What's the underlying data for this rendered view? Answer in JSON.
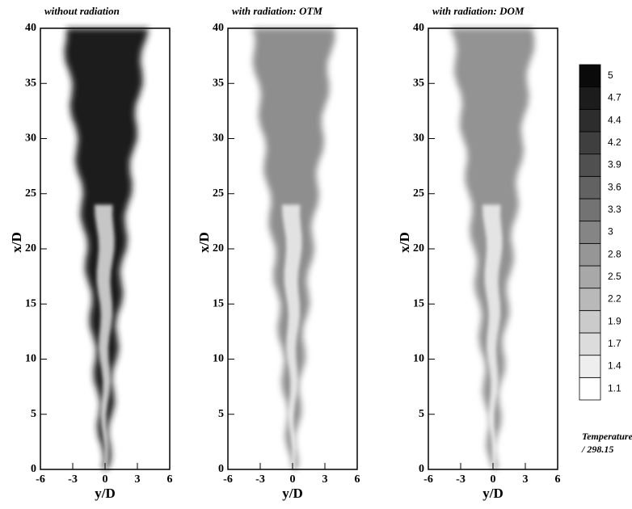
{
  "chart_data": [
    {
      "type": "contour",
      "title": "without radiation",
      "xlabel": "y/D",
      "ylabel": "x/D",
      "xlim": [
        -6,
        6
      ],
      "ylim": [
        0,
        40
      ],
      "xticks": [
        -6,
        -3,
        0,
        3,
        6
      ],
      "yticks": [
        0,
        5,
        10,
        15,
        20,
        25,
        30,
        35,
        40
      ],
      "color": "#1e1e1e"
    },
    {
      "type": "contour",
      "title": "with radiation: OTM",
      "xlabel": "y/D",
      "ylabel": "x/D",
      "xlim": [
        -6,
        6
      ],
      "ylim": [
        0,
        40
      ],
      "xticks": [
        -6,
        -3,
        0,
        3,
        6
      ],
      "yticks": [
        0,
        5,
        10,
        15,
        20,
        25,
        30,
        35,
        40
      ],
      "color": "#8e8e8e"
    },
    {
      "type": "contour",
      "title": "with radiation: DOM",
      "xlabel": "y/D",
      "ylabel": "x/D",
      "xlim": [
        -6,
        6
      ],
      "ylim": [
        0,
        40
      ],
      "xticks": [
        -6,
        -3,
        0,
        3,
        6
      ],
      "yticks": [
        0,
        5,
        10,
        15,
        20,
        25,
        30,
        35,
        40
      ],
      "color": "#939393"
    }
  ],
  "colorbar": {
    "levels": [
      1.1,
      1.4,
      1.7,
      1.9,
      2.2,
      2.5,
      2.8,
      3.0,
      3.3,
      3.6,
      3.9,
      4.2,
      4.4,
      4.7,
      5.0
    ],
    "label": [
      "Temperature",
      "/ 298.15"
    ]
  }
}
